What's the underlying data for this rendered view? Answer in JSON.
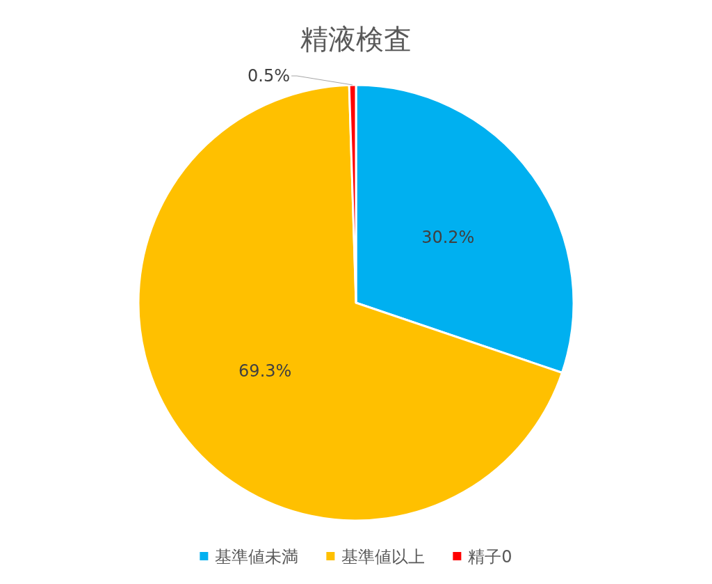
{
  "chart_data": {
    "type": "pie",
    "title": "精液検査",
    "categories": [
      "基準値未満",
      "基準値以上",
      "精子0"
    ],
    "values": [
      30.2,
      69.3,
      0.5
    ],
    "colors": [
      "#00b0f0",
      "#ffc000",
      "#ff0000"
    ],
    "value_labels": [
      "30.2%",
      "69.3%",
      "0.5%"
    ],
    "legend": "bottom"
  }
}
